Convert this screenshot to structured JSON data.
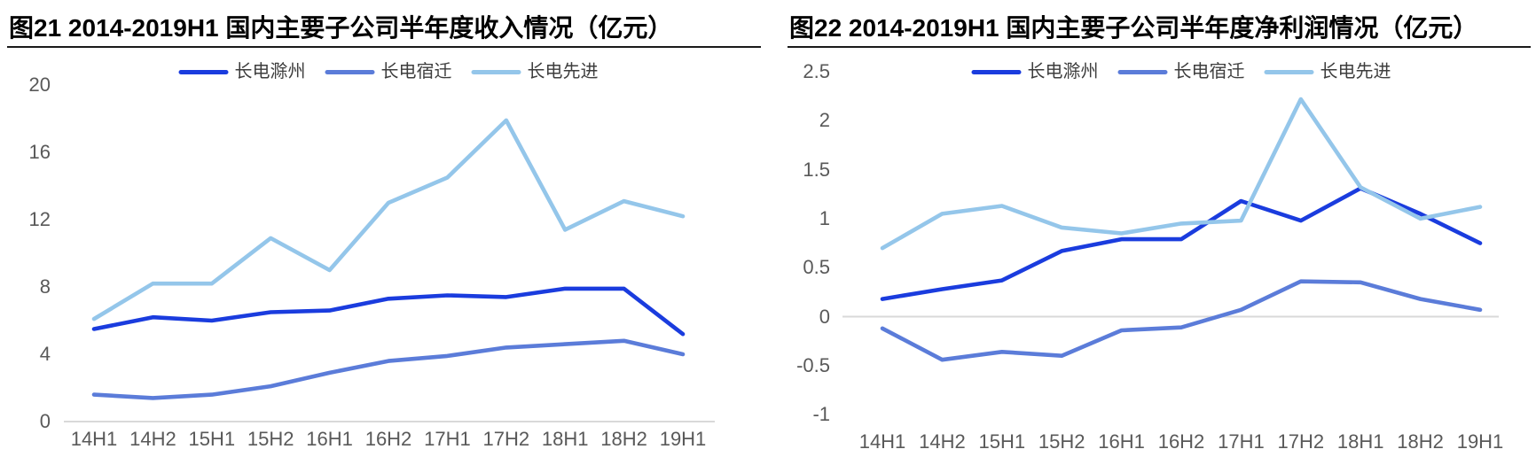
{
  "page": {
    "background": "#ffffff",
    "axis_color": "#d9d9d9",
    "tick_text_color": "#595959"
  },
  "chart_data": [
    {
      "type": "line",
      "title": "图21 2014-2019H1 国内主要子公司半年度收入情况（亿元）",
      "categories": [
        "14H1",
        "14H2",
        "15H1",
        "15H2",
        "16H1",
        "16H2",
        "17H1",
        "17H2",
        "18H1",
        "18H2",
        "19H1"
      ],
      "series": [
        {
          "name": "长电滁州",
          "color": "#1a3cde",
          "values": [
            5.5,
            6.2,
            6.0,
            6.5,
            6.6,
            7.3,
            7.5,
            7.4,
            7.9,
            7.9,
            5.2
          ]
        },
        {
          "name": "长电宿迁",
          "color": "#5b7cd9",
          "values": [
            1.6,
            1.4,
            1.6,
            2.1,
            2.9,
            3.6,
            3.9,
            4.4,
            4.6,
            4.8,
            4.0
          ]
        },
        {
          "name": "长电先进",
          "color": "#94c6ea",
          "values": [
            6.1,
            8.2,
            8.2,
            10.9,
            9.0,
            13.0,
            14.5,
            17.9,
            11.4,
            13.1,
            12.2
          ]
        }
      ],
      "xlabel": "",
      "ylabel": "",
      "ylim": [
        0,
        20
      ],
      "yticks": [
        "0",
        "4",
        "8",
        "12",
        "16",
        "20"
      ],
      "grid": "only zero axis line",
      "legend_position": "top-center"
    },
    {
      "type": "line",
      "title": "图22 2014-2019H1 国内主要子公司半年度净利润情况（亿元）",
      "categories": [
        "14H1",
        "14H2",
        "15H1",
        "15H2",
        "16H1",
        "16H2",
        "17H1",
        "17H2",
        "18H1",
        "18H2",
        "19H1"
      ],
      "series": [
        {
          "name": "长电滁州",
          "color": "#1a3cde",
          "values": [
            0.18,
            0.28,
            0.37,
            0.67,
            0.79,
            0.79,
            1.18,
            0.98,
            1.31,
            1.05,
            0.75
          ]
        },
        {
          "name": "长电宿迁",
          "color": "#5b7cd9",
          "values": [
            -0.12,
            -0.44,
            -0.36,
            -0.4,
            -0.14,
            -0.11,
            0.07,
            0.36,
            0.35,
            0.18,
            0.07
          ]
        },
        {
          "name": "长电先进",
          "color": "#94c6ea",
          "values": [
            0.7,
            1.05,
            1.13,
            0.91,
            0.85,
            0.95,
            0.98,
            2.22,
            1.32,
            1.0,
            1.12
          ]
        }
      ],
      "xlabel": "",
      "ylabel": "",
      "ylim": [
        -1,
        2.5
      ],
      "yticks": [
        "-1",
        "-0.5",
        "0",
        "0.5",
        "1",
        "1.5",
        "2",
        "2.5"
      ],
      "grid": "only zero gridline",
      "legend_position": "top-center"
    }
  ]
}
